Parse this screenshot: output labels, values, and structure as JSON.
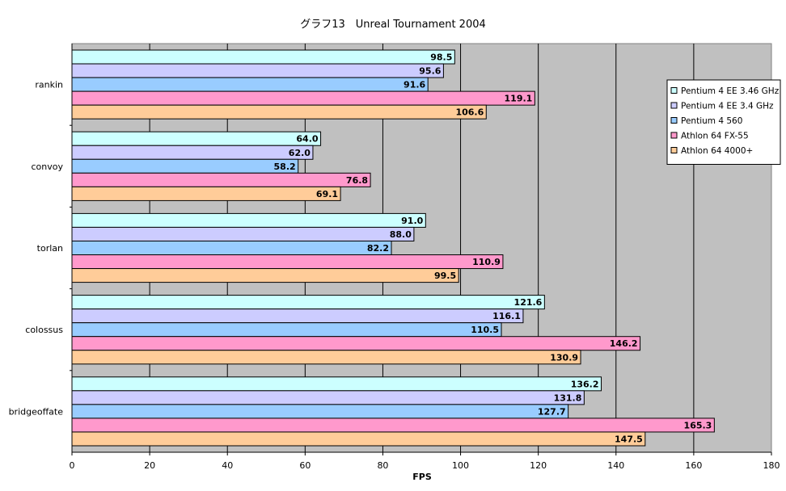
{
  "chart_data": {
    "type": "bar",
    "orientation": "horizontal",
    "title": "グラフ13　Unreal Tournament 2004",
    "xlabel": "FPS",
    "ylabel": "",
    "xlim": [
      0,
      180
    ],
    "x_ticks": [
      0,
      20,
      40,
      60,
      80,
      100,
      120,
      140,
      160,
      180
    ],
    "grid": true,
    "legend_position": "right",
    "categories": [
      "rankin",
      "convoy",
      "torlan",
      "colossus",
      "bridgeoffate"
    ],
    "series": [
      {
        "name": "Pentium 4 EE 3.46 GHz",
        "color": "#CCFFFF",
        "values": [
          98.5,
          64.0,
          91.0,
          121.6,
          136.2
        ]
      },
      {
        "name": "Pentium 4 EE 3.4 GHz",
        "color": "#CCCCFF",
        "values": [
          95.6,
          62.0,
          88.0,
          116.1,
          131.8
        ]
      },
      {
        "name": "Pentium 4 560",
        "color": "#99CCFF",
        "values": [
          91.6,
          58.2,
          82.2,
          110.5,
          127.7
        ]
      },
      {
        "name": "Athlon 64 FX-55",
        "color": "#FF99CC",
        "values": [
          119.1,
          76.8,
          110.9,
          146.2,
          165.3
        ]
      },
      {
        "name": "Athlon 64 4000+",
        "color": "#FFCC99",
        "values": [
          106.6,
          69.1,
          99.5,
          130.9,
          147.5
        ]
      }
    ],
    "plot_background": "#C0C0C0"
  }
}
